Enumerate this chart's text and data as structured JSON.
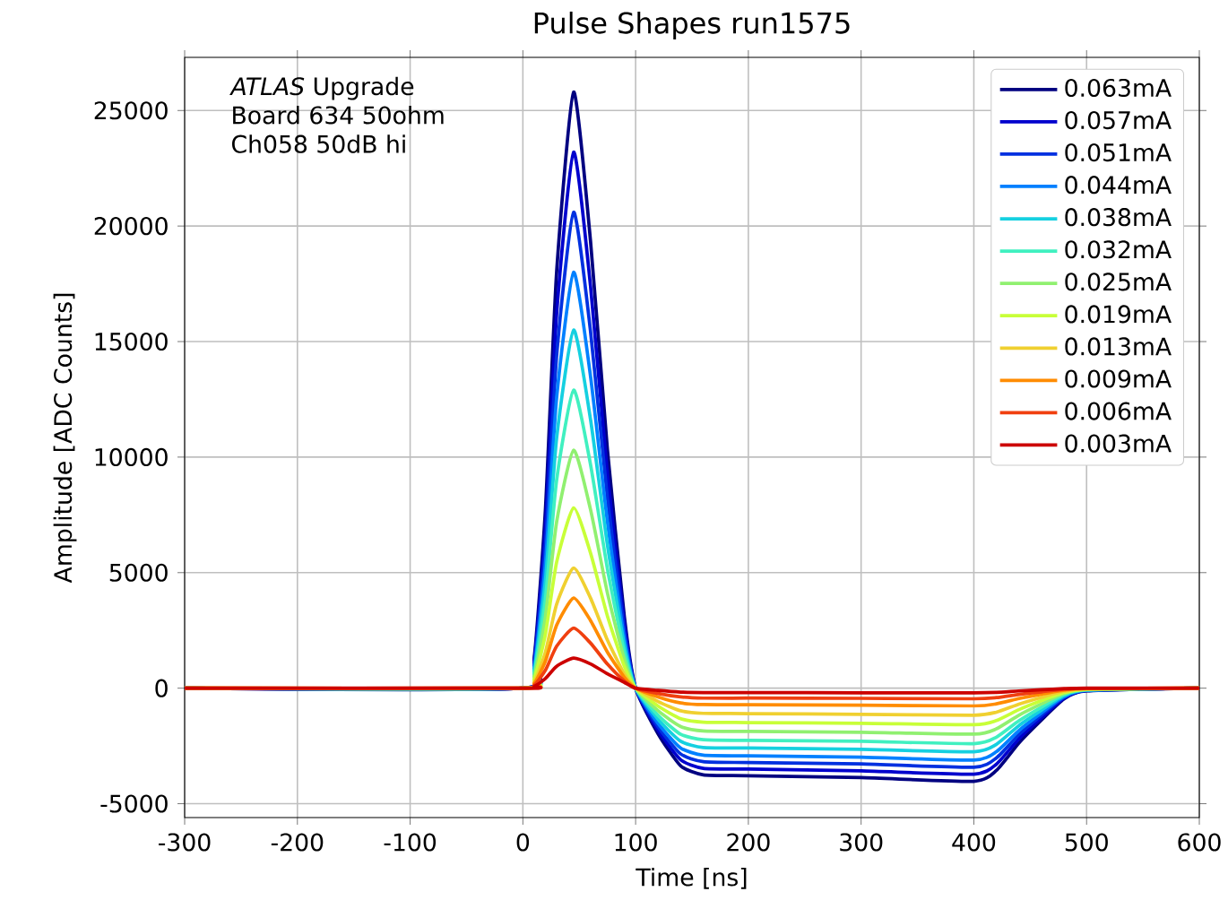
{
  "chart_data": {
    "type": "line",
    "title": "Pulse Shapes run1575",
    "xlabel": "Time [ns]",
    "ylabel": "Amplitude [ADC Counts]",
    "annotations": [
      "*ATLAS* Upgrade",
      "Board 634 50ohm",
      "Ch058 50dB hi"
    ],
    "x": [
      -300,
      0,
      10,
      20,
      30,
      45,
      60,
      75,
      90,
      100,
      120,
      140,
      160,
      200,
      300,
      400,
      420,
      440,
      460,
      480,
      500,
      600
    ],
    "series": [
      {
        "name": "0.063mA",
        "color": "#000080",
        "values": [
          0,
          0,
          1290,
          7740,
          18060,
          25800,
          19350,
          10320,
          3100,
          0,
          -1980,
          -3360,
          -3750,
          -3790,
          -3870,
          -4030,
          -3560,
          -2370,
          -1380,
          -470,
          -120,
          0
        ]
      },
      {
        "name": "0.057mA",
        "color": "#0000cd",
        "values": [
          0,
          0,
          1160,
          6960,
          16240,
          23200,
          17400,
          9280,
          2780,
          0,
          -1830,
          -3100,
          -3470,
          -3500,
          -3580,
          -3720,
          -3290,
          -2190,
          -1280,
          -440,
          -110,
          0
        ]
      },
      {
        "name": "0.051mA",
        "color": "#0030e0",
        "values": [
          0,
          0,
          1030,
          6180,
          14420,
          20600,
          15450,
          8240,
          2470,
          0,
          -1680,
          -2850,
          -3180,
          -3220,
          -3280,
          -3420,
          -3020,
          -2010,
          -1170,
          -400,
          -100,
          0
        ]
      },
      {
        "name": "0.044mA",
        "color": "#0080ff",
        "values": [
          0,
          0,
          900,
          5400,
          12600,
          18000,
          13500,
          7200,
          2160,
          0,
          -1530,
          -2590,
          -2900,
          -2930,
          -2990,
          -3110,
          -2750,
          -1830,
          -1070,
          -370,
          -90,
          0
        ]
      },
      {
        "name": "0.038mA",
        "color": "#15d0e0",
        "values": [
          0,
          0,
          780,
          4650,
          10850,
          15500,
          11630,
          6200,
          1860,
          0,
          -1350,
          -2300,
          -2570,
          -2590,
          -2650,
          -2750,
          -2430,
          -1620,
          -950,
          -320,
          -80,
          0
        ]
      },
      {
        "name": "0.032mA",
        "color": "#40f0c0",
        "values": [
          0,
          0,
          650,
          3870,
          9030,
          12900,
          9680,
          5160,
          1550,
          0,
          -1180,
          -2000,
          -2230,
          -2260,
          -2300,
          -2400,
          -2120,
          -1410,
          -820,
          -280,
          -70,
          0
        ]
      },
      {
        "name": "0.025mA",
        "color": "#90f070",
        "values": [
          0,
          0,
          520,
          3090,
          7210,
          10300,
          7730,
          4120,
          1240,
          0,
          -980,
          -1660,
          -1850,
          -1870,
          -1910,
          -1990,
          -1760,
          -1170,
          -680,
          -230,
          -60,
          0
        ]
      },
      {
        "name": "0.019mA",
        "color": "#c8ff38",
        "values": [
          0,
          0,
          390,
          2340,
          5460,
          7800,
          5850,
          3120,
          940,
          0,
          -780,
          -1320,
          -1470,
          -1490,
          -1520,
          -1580,
          -1400,
          -930,
          -540,
          -190,
          -50,
          0
        ]
      },
      {
        "name": "0.013mA",
        "color": "#f0d030",
        "values": [
          0,
          0,
          260,
          1560,
          3640,
          5200,
          3900,
          2080,
          620,
          0,
          -580,
          -980,
          -1090,
          -1100,
          -1130,
          -1170,
          -1040,
          -690,
          -400,
          -140,
          -30,
          0
        ]
      },
      {
        "name": "0.009mA",
        "color": "#ff8c00",
        "values": [
          0,
          0,
          200,
          1170,
          2730,
          3900,
          2930,
          1560,
          470,
          0,
          -380,
          -640,
          -710,
          -720,
          -740,
          -770,
          -680,
          -450,
          -260,
          -90,
          -20,
          0
        ]
      },
      {
        "name": "0.006mA",
        "color": "#f04010",
        "values": [
          0,
          0,
          130,
          780,
          1820,
          2600,
          1950,
          1040,
          310,
          0,
          -230,
          -380,
          -430,
          -430,
          -440,
          -460,
          -410,
          -270,
          -160,
          -50,
          -10,
          0
        ]
      },
      {
        "name": "0.003mA",
        "color": "#cc0000",
        "values": [
          0,
          0,
          80,
          420,
          950,
          1300,
          1050,
          620,
          250,
          0,
          -100,
          -170,
          -190,
          -190,
          -200,
          -200,
          -180,
          -120,
          -70,
          -20,
          0,
          0
        ]
      }
    ],
    "xlim": [
      -300,
      600
    ],
    "xticks": [
      -300,
      -200,
      -100,
      0,
      100,
      200,
      300,
      400,
      500,
      600
    ],
    "ylim": [
      -5600,
      27300
    ],
    "yticks": [
      -5000,
      0,
      5000,
      10000,
      15000,
      20000,
      25000
    ],
    "grid": true,
    "legend": "top right",
    "line_style": "solid"
  }
}
